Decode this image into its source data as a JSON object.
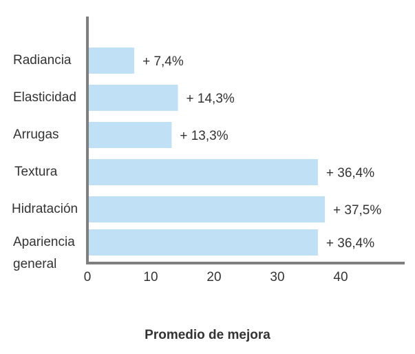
{
  "chart_data": {
    "type": "bar",
    "orientation": "horizontal",
    "categories": [
      "Radiancia",
      "Elasticidad",
      "Arrugas",
      "Textura",
      "Hidratación",
      "Apariencia general"
    ],
    "category_lines": [
      [
        "Radiancia"
      ],
      [
        "Elasticidad"
      ],
      [
        "Arrugas"
      ],
      [
        "Textura"
      ],
      [
        "Hidratación"
      ],
      [
        "Apariencia",
        "general"
      ]
    ],
    "values": [
      7.4,
      14.3,
      13.3,
      36.4,
      37.5,
      36.4
    ],
    "data_labels": [
      "+ 7,4%",
      "+ 14,3%",
      "+ 13,3%",
      "+ 36,4%",
      "+ 37,5%",
      "+ 36,4%"
    ],
    "xlabel": "Promedio de mejora",
    "xlim": [
      0,
      50
    ],
    "xticks": [
      0,
      10,
      20,
      30,
      40
    ],
    "grid": false,
    "colors": {
      "bar": "#c0e0f6",
      "axis": "#7f7f7f",
      "text": "#333333"
    }
  }
}
